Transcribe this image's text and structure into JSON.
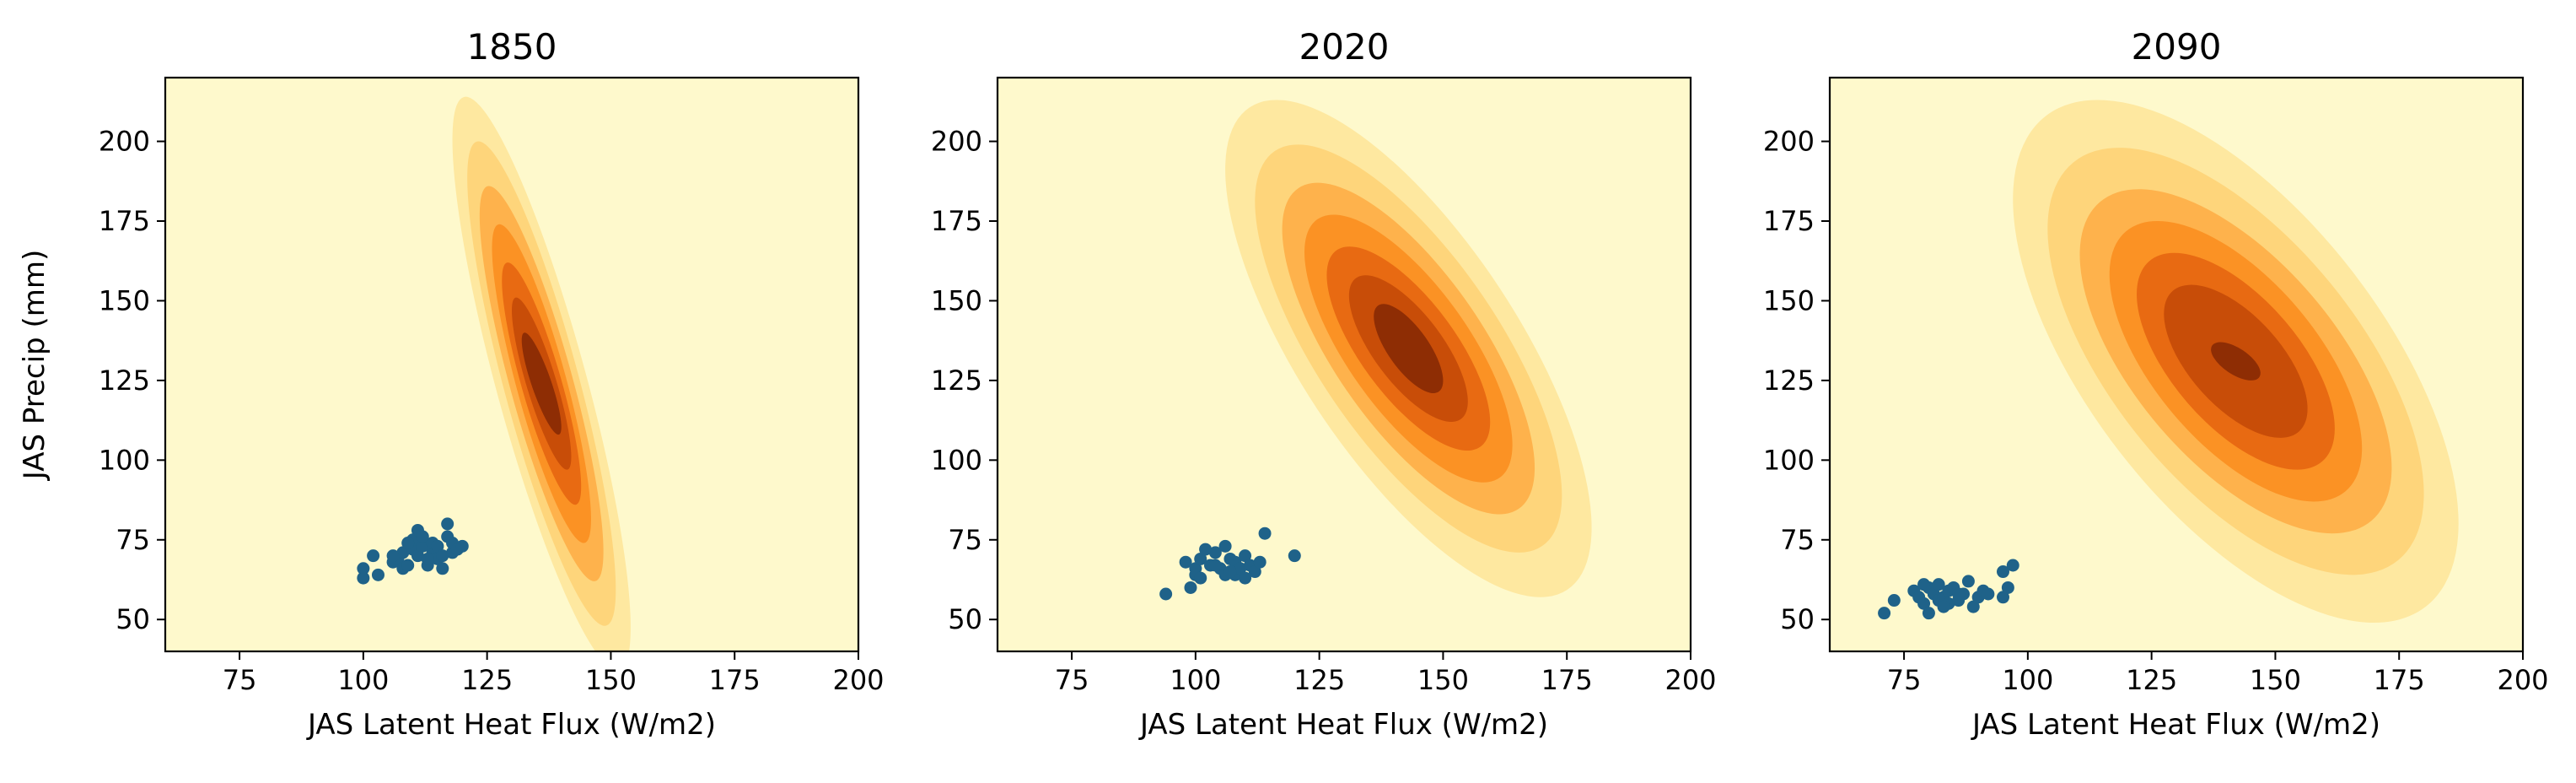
{
  "chart_data": [
    {
      "type": "scatter",
      "title": "1850",
      "xlabel": "JAS Latent Heat Flux (W/m2)",
      "ylabel": "JAS Precip (mm)",
      "xlim": [
        60,
        200
      ],
      "ylim": [
        40,
        220
      ],
      "xticks": [
        "75",
        "100",
        "125",
        "150",
        "175",
        "200"
      ],
      "yticks": [
        "50",
        "75",
        "100",
        "125",
        "150",
        "175",
        "200"
      ],
      "background_color": "#fef9cc",
      "point_color": "#1f6289",
      "density_colors": [
        "#fee8a0",
        "#fed57b",
        "#feb24c",
        "#fb9224",
        "#e86a12",
        "#c84d08",
        "#8e2d04"
      ],
      "density": {
        "center": [
          136,
          124
        ],
        "sx": [
          18,
          15,
          12.5,
          10,
          8,
          6,
          4
        ],
        "sy": [
          90,
          76,
          62,
          50,
          38,
          27,
          16
        ],
        "corr": 0.85
      },
      "points": [
        [
          100,
          63
        ],
        [
          100,
          66
        ],
        [
          102,
          70
        ],
        [
          103,
          64
        ],
        [
          106,
          68
        ],
        [
          107,
          69
        ],
        [
          108,
          71
        ],
        [
          108,
          66
        ],
        [
          109,
          67
        ],
        [
          110,
          72
        ],
        [
          110,
          75
        ],
        [
          111,
          70
        ],
        [
          111,
          78
        ],
        [
          112,
          73
        ],
        [
          112,
          76
        ],
        [
          113,
          67
        ],
        [
          114,
          71
        ],
        [
          114,
          74
        ],
        [
          115,
          73
        ],
        [
          115,
          69
        ],
        [
          116,
          66
        ],
        [
          116,
          70
        ],
        [
          117,
          76
        ],
        [
          117,
          80
        ],
        [
          118,
          71
        ],
        [
          118,
          74
        ],
        [
          119,
          72
        ],
        [
          120,
          73
        ],
        [
          113,
          69
        ],
        [
          109,
          74
        ],
        [
          106,
          70
        ]
      ]
    },
    {
      "type": "scatter",
      "title": "2020",
      "xlabel": "JAS Latent Heat Flux (W/m2)",
      "ylabel": "",
      "xlim": [
        60,
        200
      ],
      "ylim": [
        40,
        220
      ],
      "xticks": [
        "75",
        "100",
        "125",
        "150",
        "175",
        "200"
      ],
      "yticks": [
        "50",
        "75",
        "100",
        "125",
        "150",
        "175",
        "200"
      ],
      "background_color": "#fef9cc",
      "point_color": "#1f6289",
      "density_colors": [
        "#fee8a0",
        "#fed57b",
        "#feb24c",
        "#fb9224",
        "#e86a12",
        "#c84d08",
        "#8e2d04"
      ],
      "density": {
        "center": [
          143,
          135
        ],
        "sx": [
          37,
          31,
          25.5,
          21,
          16.5,
          12,
          7
        ],
        "sy": [
          78,
          64,
          52,
          42,
          32,
          23,
          14
        ],
        "corr": 0.72
      },
      "points": [
        [
          94,
          58
        ],
        [
          98,
          68
        ],
        [
          99,
          60
        ],
        [
          100,
          66
        ],
        [
          100,
          64
        ],
        [
          101,
          69
        ],
        [
          102,
          72
        ],
        [
          103,
          67
        ],
        [
          104,
          71
        ],
        [
          105,
          66
        ],
        [
          106,
          73
        ],
        [
          106,
          64
        ],
        [
          107,
          69
        ],
        [
          108,
          68
        ],
        [
          108,
          64
        ],
        [
          109,
          66
        ],
        [
          110,
          63
        ],
        [
          110,
          70
        ],
        [
          111,
          67
        ],
        [
          112,
          65
        ],
        [
          113,
          68
        ],
        [
          114,
          77
        ],
        [
          120,
          70
        ],
        [
          101,
          63
        ],
        [
          104,
          67
        ],
        [
          107,
          65
        ]
      ]
    },
    {
      "type": "scatter",
      "title": "2090",
      "xlabel": "JAS Latent Heat Flux (W/m2)",
      "ylabel": "",
      "xlim": [
        60,
        200
      ],
      "ylim": [
        40,
        220
      ],
      "xticks": [
        "75",
        "100",
        "125",
        "150",
        "175",
        "200"
      ],
      "yticks": [
        "50",
        "75",
        "100",
        "125",
        "150",
        "175",
        "200"
      ],
      "background_color": "#fef9cc",
      "point_color": "#1f6289",
      "density_colors": [
        "#fee8a0",
        "#fed57b",
        "#feb24c",
        "#fb9224",
        "#e86a12",
        "#c84d08",
        "#8e2d04"
      ],
      "density": {
        "center": [
          142,
          131
        ],
        "sx": [
          45,
          38,
          31.5,
          25.5,
          20,
          14.5,
          5
        ],
        "sy": [
          82,
          67,
          54,
          44,
          34,
          24,
          6
        ],
        "corr": 0.62
      },
      "points": [
        [
          71,
          52
        ],
        [
          73,
          56
        ],
        [
          77,
          59
        ],
        [
          78,
          57
        ],
        [
          79,
          55
        ],
        [
          80,
          60
        ],
        [
          80,
          52
        ],
        [
          81,
          58
        ],
        [
          82,
          56
        ],
        [
          82,
          61
        ],
        [
          83,
          57
        ],
        [
          84,
          55
        ],
        [
          84,
          59
        ],
        [
          85,
          60
        ],
        [
          86,
          56
        ],
        [
          87,
          58
        ],
        [
          88,
          62
        ],
        [
          89,
          54
        ],
        [
          90,
          57
        ],
        [
          91,
          59
        ],
        [
          95,
          57
        ],
        [
          95,
          65
        ],
        [
          96,
          60
        ],
        [
          97,
          67
        ],
        [
          79,
          61
        ],
        [
          83,
          54
        ],
        [
          86,
          58
        ],
        [
          92,
          58
        ]
      ]
    }
  ]
}
